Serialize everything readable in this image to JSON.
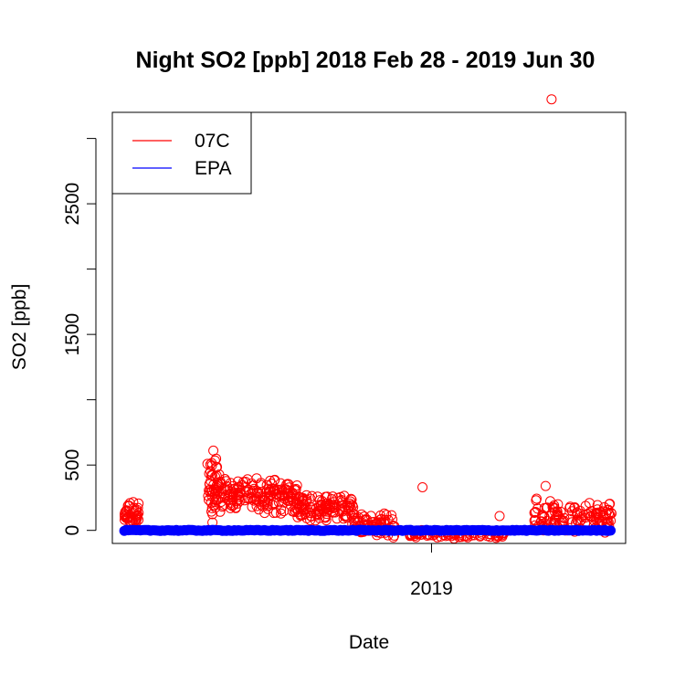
{
  "chart_data": {
    "type": "scatter",
    "title": "Night SO2 [ppb] 2018 Feb 28 - 2019 Jun 30",
    "xlabel": "Date",
    "ylabel": "SO2 [ppb]",
    "xlim": [
      "2018-02-16",
      "2019-07-14"
    ],
    "ylim": [
      -100,
      3200
    ],
    "y_ticks": [
      0,
      500,
      1000,
      1500,
      2000,
      2500,
      3000
    ],
    "y_tick_labels": [
      "0",
      "500",
      "",
      "1500",
      "",
      "2500",
      ""
    ],
    "x_ticks": [
      "2019-01-01"
    ],
    "x_tick_labels": [
      "2019"
    ],
    "grid": false,
    "legend_position": "top-left",
    "series": [
      {
        "name": "07C",
        "color": "#FF0000",
        "marker": "open-circle",
        "legend_style": "line",
        "segments": [
          {
            "start": "2018-02-28",
            "end": "2018-03-15",
            "base": 120,
            "spread": 110,
            "count": 40
          },
          {
            "start": "2018-05-22",
            "end": "2018-06-05",
            "base": 300,
            "spread": 260,
            "count": 55
          },
          {
            "start": "2018-06-05",
            "end": "2018-08-20",
            "base": 270,
            "spread": 150,
            "count": 170
          },
          {
            "start": "2018-08-20",
            "end": "2018-10-15",
            "base": 160,
            "spread": 130,
            "count": 120
          },
          {
            "start": "2018-10-15",
            "end": "2018-11-25",
            "base": 30,
            "spread": 110,
            "count": 80
          },
          {
            "start": "2018-12-10",
            "end": "2019-03-15",
            "base": -30,
            "spread": 40,
            "count": 80
          },
          {
            "start": "2019-04-10",
            "end": "2019-06-30",
            "base": 110,
            "spread": 150,
            "count": 130
          }
        ],
        "highlights": [
          {
            "x": "2018-05-28",
            "y": 610
          },
          {
            "x": "2018-12-23",
            "y": 330
          },
          {
            "x": "2019-03-10",
            "y": 110
          },
          {
            "x": "2019-04-25",
            "y": 340
          },
          {
            "x": "2019-05-01",
            "y": 3300
          }
        ]
      },
      {
        "name": "EPA",
        "color": "#0000FF",
        "marker": "filled-circle",
        "legend_style": "line",
        "start": "2018-02-28",
        "end": "2019-06-30",
        "value": 0,
        "spread": 8
      }
    ]
  }
}
